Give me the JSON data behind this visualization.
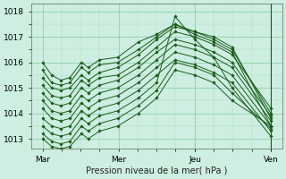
{
  "xlabel": "Pression niveau de la mer( hPa )",
  "bg_color": "#cdeee0",
  "grid_color_major": "#88c8a8",
  "grid_color_minor": "#aaddc0",
  "line_color": "#1a5c1a",
  "ylim": [
    1012.6,
    1018.3
  ],
  "xlim": [
    -0.05,
    1.05
  ],
  "xtick_labels": [
    "Mar",
    "Mer",
    "Jeu",
    "Ven"
  ],
  "xtick_pos": [
    0.0,
    0.333,
    0.667,
    1.0
  ],
  "ytick_vals": [
    1013,
    1014,
    1015,
    1016,
    1017,
    1018
  ],
  "lines": [
    {
      "x": [
        0.0,
        0.04,
        0.08,
        0.12,
        0.17,
        0.2,
        0.25,
        0.33,
        0.42,
        0.5,
        0.58,
        0.667,
        0.75,
        0.83,
        1.0
      ],
      "y": [
        1016.0,
        1015.5,
        1015.3,
        1015.4,
        1016.0,
        1015.8,
        1016.1,
        1016.2,
        1016.8,
        1017.1,
        1017.5,
        1017.1,
        1016.8,
        1016.4,
        1013.5
      ]
    },
    {
      "x": [
        0.0,
        0.04,
        0.08,
        0.12,
        0.17,
        0.2,
        0.25,
        0.33,
        0.42,
        0.5,
        0.58,
        0.667,
        0.75,
        0.83,
        1.0
      ],
      "y": [
        1015.7,
        1015.2,
        1015.1,
        1015.2,
        1015.8,
        1015.6,
        1015.9,
        1016.0,
        1016.5,
        1017.0,
        1017.5,
        1017.2,
        1017.0,
        1016.6,
        1013.8
      ]
    },
    {
      "x": [
        0.0,
        0.04,
        0.08,
        0.12,
        0.17,
        0.2,
        0.25,
        0.33,
        0.42,
        0.5,
        0.58,
        0.667,
        0.75,
        0.83,
        1.0
      ],
      "y": [
        1015.4,
        1015.0,
        1014.9,
        1015.0,
        1015.5,
        1015.3,
        1015.6,
        1015.8,
        1016.3,
        1016.9,
        1017.4,
        1017.2,
        1016.9,
        1016.5,
        1014.0
      ]
    },
    {
      "x": [
        0.0,
        0.04,
        0.08,
        0.12,
        0.17,
        0.2,
        0.25,
        0.33,
        0.42,
        0.5,
        0.58,
        0.667,
        0.75,
        0.83,
        1.0
      ],
      "y": [
        1015.1,
        1014.7,
        1014.6,
        1014.7,
        1015.3,
        1015.1,
        1015.4,
        1015.5,
        1016.0,
        1016.6,
        1017.2,
        1017.0,
        1016.7,
        1016.3,
        1014.2
      ]
    },
    {
      "x": [
        0.0,
        0.04,
        0.08,
        0.12,
        0.17,
        0.2,
        0.25,
        0.33,
        0.42,
        0.5,
        0.58,
        0.667,
        0.75,
        0.83,
        1.0
      ],
      "y": [
        1014.8,
        1014.4,
        1014.3,
        1014.4,
        1015.0,
        1014.8,
        1015.1,
        1015.3,
        1015.8,
        1016.4,
        1016.9,
        1016.7,
        1016.4,
        1016.0,
        1013.9
      ]
    },
    {
      "x": [
        0.0,
        0.04,
        0.08,
        0.12,
        0.17,
        0.2,
        0.25,
        0.33,
        0.42,
        0.5,
        0.58,
        0.667,
        0.75,
        0.83,
        1.0
      ],
      "y": [
        1014.5,
        1014.1,
        1014.0,
        1014.1,
        1014.7,
        1014.5,
        1014.8,
        1015.0,
        1015.5,
        1016.1,
        1016.7,
        1016.5,
        1016.2,
        1015.8,
        1013.7
      ]
    },
    {
      "x": [
        0.0,
        0.04,
        0.08,
        0.12,
        0.17,
        0.2,
        0.25,
        0.33,
        0.42,
        0.5,
        0.58,
        0.667,
        0.75,
        0.83,
        1.0
      ],
      "y": [
        1014.2,
        1013.8,
        1013.7,
        1013.8,
        1014.4,
        1014.2,
        1014.5,
        1014.7,
        1015.2,
        1015.8,
        1016.4,
        1016.2,
        1015.9,
        1015.5,
        1013.5
      ]
    },
    {
      "x": [
        0.0,
        0.04,
        0.08,
        0.12,
        0.17,
        0.2,
        0.25,
        0.33,
        0.42,
        0.5,
        0.58,
        0.667,
        0.75,
        0.83,
        1.0
      ],
      "y": [
        1013.8,
        1013.5,
        1013.4,
        1013.5,
        1014.1,
        1013.9,
        1014.2,
        1014.4,
        1014.9,
        1015.5,
        1016.1,
        1015.9,
        1015.6,
        1015.2,
        1013.3
      ]
    },
    {
      "x": [
        0.0,
        0.04,
        0.08,
        0.12,
        0.17,
        0.2,
        0.25,
        0.33,
        0.42,
        0.5,
        0.58,
        0.667,
        0.75,
        0.83,
        1.0
      ],
      "y": [
        1013.5,
        1013.2,
        1013.1,
        1013.2,
        1013.8,
        1013.6,
        1013.9,
        1014.1,
        1014.6,
        1015.2,
        1017.8,
        1016.9,
        1016.2,
        1015.0,
        1013.1
      ]
    },
    {
      "x": [
        0.0,
        0.04,
        0.08,
        0.12,
        0.17,
        0.2,
        0.25,
        0.33,
        0.42,
        0.5,
        0.58,
        0.667,
        0.75,
        0.83,
        1.0
      ],
      "y": [
        1013.2,
        1012.9,
        1012.8,
        1012.9,
        1013.5,
        1013.3,
        1013.6,
        1013.8,
        1014.3,
        1014.9,
        1016.0,
        1015.8,
        1015.5,
        1014.8,
        1013.4
      ]
    },
    {
      "x": [
        0.0,
        0.04,
        0.08,
        0.12,
        0.17,
        0.2,
        0.25,
        0.33,
        0.42,
        0.5,
        0.58,
        0.667,
        0.75,
        0.83,
        1.0
      ],
      "y": [
        1013.0,
        1012.7,
        1012.6,
        1012.7,
        1013.2,
        1013.0,
        1013.3,
        1013.5,
        1014.0,
        1014.6,
        1015.7,
        1015.5,
        1015.2,
        1014.5,
        1013.5
      ]
    }
  ],
  "vline_pos": [
    1.0
  ],
  "marker": "D",
  "markersize": 1.8,
  "linewidth": 0.7
}
